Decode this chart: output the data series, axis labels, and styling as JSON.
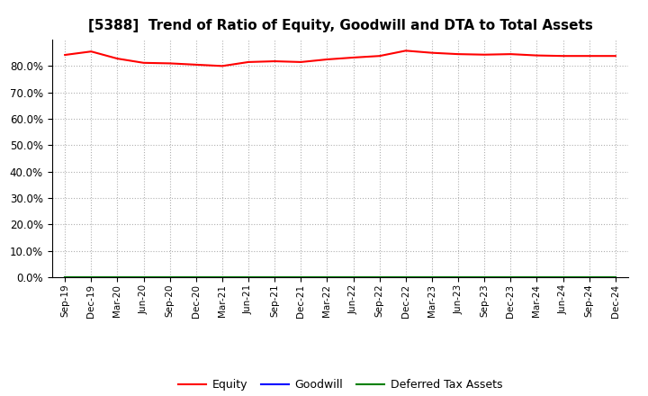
{
  "title": "[5388]  Trend of Ratio of Equity, Goodwill and DTA to Total Assets",
  "x_labels": [
    "Sep-19",
    "Dec-19",
    "Mar-20",
    "Jun-20",
    "Sep-20",
    "Dec-20",
    "Mar-21",
    "Jun-21",
    "Sep-21",
    "Dec-21",
    "Mar-22",
    "Jun-22",
    "Sep-22",
    "Dec-22",
    "Mar-23",
    "Jun-23",
    "Sep-23",
    "Dec-23",
    "Mar-24",
    "Jun-24",
    "Sep-24",
    "Dec-24"
  ],
  "equity": [
    84.2,
    85.5,
    82.8,
    81.2,
    81.0,
    80.5,
    80.0,
    81.5,
    81.8,
    81.5,
    82.5,
    83.2,
    83.8,
    85.8,
    85.0,
    84.5,
    84.3,
    84.5,
    84.0,
    83.8,
    83.8,
    83.8
  ],
  "goodwill": [
    0.0,
    0.0,
    0.0,
    0.0,
    0.0,
    0.0,
    0.0,
    0.0,
    0.0,
    0.0,
    0.0,
    0.0,
    0.0,
    0.0,
    0.0,
    0.0,
    0.0,
    0.0,
    0.0,
    0.0,
    0.0,
    0.0
  ],
  "dta": [
    0.0,
    0.0,
    0.0,
    0.0,
    0.0,
    0.0,
    0.0,
    0.0,
    0.0,
    0.0,
    0.0,
    0.0,
    0.0,
    0.0,
    0.0,
    0.0,
    0.0,
    0.0,
    0.0,
    0.0,
    0.0,
    0.0
  ],
  "equity_color": "#ff0000",
  "goodwill_color": "#0000ff",
  "dta_color": "#008000",
  "ylim": [
    0,
    90
  ],
  "yticks": [
    0.0,
    10.0,
    20.0,
    30.0,
    40.0,
    50.0,
    60.0,
    70.0,
    80.0
  ],
  "background_color": "#ffffff",
  "grid_color": "#b0b0b0",
  "title_fontsize": 11,
  "legend_labels": [
    "Equity",
    "Goodwill",
    "Deferred Tax Assets"
  ]
}
